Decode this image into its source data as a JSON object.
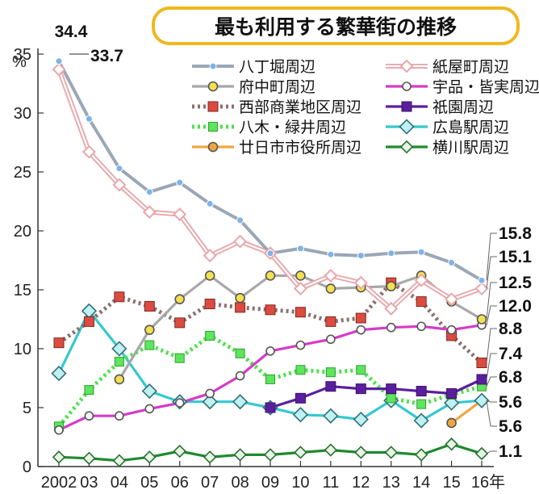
{
  "chart_data": {
    "type": "line",
    "title": "最も利用する繁華街の推移",
    "ylabel": "%",
    "xlabel": "",
    "ylim": [
      0,
      35
    ],
    "yticks": [
      "0",
      "5",
      "10",
      "15",
      "20",
      "25",
      "30",
      "35"
    ],
    "categories": [
      "2002",
      "03",
      "04",
      "05",
      "06",
      "07",
      "08",
      "09",
      "10",
      "11",
      "12",
      "13",
      "14",
      "15",
      "16年"
    ],
    "grid": false,
    "legend_position": "top-right",
    "series": [
      {
        "name": "八丁堀周辺",
        "color": "#9aa7b6",
        "marker": "dot",
        "lineStyle": "solid",
        "values": [
          34.4,
          29.5,
          25.3,
          23.3,
          24.1,
          22.3,
          20.9,
          18.1,
          18.5,
          18.0,
          17.9,
          18.1,
          18.2,
          17.3,
          15.8
        ]
      },
      {
        "name": "紙屋町周辺",
        "color": "#e8a7ab",
        "marker": "diamond",
        "lineStyle": "double",
        "values": [
          33.7,
          26.7,
          23.9,
          21.6,
          21.4,
          17.9,
          19.1,
          18.1,
          15.1,
          16.2,
          15.6,
          13.4,
          15.8,
          14.2,
          15.1
        ]
      },
      {
        "name": "府中町周辺",
        "color": "#a8a8a8",
        "marker": "circle-yellow",
        "lineStyle": "solid",
        "values": [
          null,
          null,
          7.4,
          11.6,
          14.2,
          16.2,
          14.3,
          16.2,
          16.2,
          15.1,
          15.2,
          15.3,
          16.2,
          14.0,
          12.5
        ]
      },
      {
        "name": "宇品・皆実周辺",
        "color": "#d63ac7",
        "marker": "circle-white",
        "lineStyle": "solid",
        "values": [
          3.1,
          4.3,
          4.3,
          4.9,
          5.4,
          6.2,
          7.7,
          9.8,
          10.3,
          10.8,
          11.6,
          11.8,
          11.9,
          11.6,
          12.0
        ]
      },
      {
        "name": "西部商業地区周辺",
        "color": "#8c6f6f",
        "marker": "square-red",
        "lineStyle": "dotted",
        "values": [
          10.5,
          12.3,
          14.4,
          13.6,
          12.2,
          13.8,
          13.5,
          13.3,
          13.1,
          12.3,
          12.6,
          15.6,
          14.0,
          11.1,
          8.8
        ]
      },
      {
        "name": "祇園周辺",
        "color": "#5b1f9e",
        "marker": "square-purple",
        "lineStyle": "solid",
        "values": [
          null,
          null,
          null,
          null,
          null,
          null,
          null,
          5.0,
          5.8,
          6.8,
          6.6,
          6.6,
          6.4,
          6.2,
          7.4
        ]
      },
      {
        "name": "八木・緑井周辺",
        "color": "#4ee04e",
        "marker": "square-green",
        "lineStyle": "dotted",
        "values": [
          3.4,
          6.5,
          8.9,
          10.3,
          9.2,
          11.1,
          9.6,
          7.4,
          8.2,
          8.0,
          8.2,
          5.8,
          5.3,
          6.1,
          6.8
        ]
      },
      {
        "name": "広島駅周辺",
        "color": "#35c8cf",
        "marker": "diamond-cyan",
        "lineStyle": "solid",
        "values": [
          7.9,
          13.2,
          10.0,
          6.4,
          5.5,
          5.5,
          5.5,
          5.0,
          4.4,
          4.3,
          4.0,
          5.6,
          3.9,
          5.4,
          5.6
        ]
      },
      {
        "name": "廿日市市役所周辺",
        "color": "#f0a640",
        "marker": "circle-orange",
        "lineStyle": "solid",
        "values": [
          null,
          null,
          null,
          null,
          null,
          null,
          null,
          null,
          null,
          null,
          null,
          null,
          null,
          3.7,
          5.6
        ]
      },
      {
        "name": "横川駅周辺",
        "color": "#1e8a2e",
        "marker": "diamond-green",
        "lineStyle": "solid",
        "values": [
          0.8,
          0.7,
          0.5,
          0.8,
          1.3,
          0.8,
          1.0,
          1.0,
          1.2,
          1.4,
          1.2,
          1.2,
          1.0,
          1.9,
          1.1
        ]
      }
    ],
    "annotations": [
      {
        "text": "34.4",
        "series": 0,
        "index": 0
      },
      {
        "text": "33.7",
        "series": 1,
        "index": 0
      }
    ],
    "end_labels": [
      "15.8",
      "15.1",
      "12.5",
      "12.0",
      "8.8",
      "7.4",
      "6.8",
      "5.6",
      "5.6",
      "1.1"
    ]
  }
}
